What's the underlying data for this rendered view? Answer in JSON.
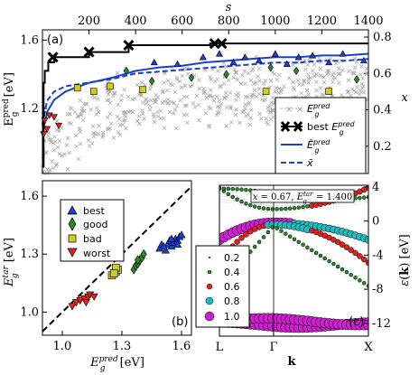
{
  "chart_data": [
    {
      "panel": "(a)",
      "type": "scatter",
      "x_bottom_label": "",
      "x_top_label": "s",
      "x_top_ticks": [
        "200",
        "400",
        "600",
        "800",
        "1000",
        "1200",
        "1400"
      ],
      "xlim": [
        0,
        1400
      ],
      "ylabel_left": "E_g^pred [eV]",
      "ylabel_left_ticks": [
        "1.2",
        "1.6"
      ],
      "ylim_left": [
        0.82,
        1.66
      ],
      "ylabel_right": "x",
      "yticks_right": [
        "0.2",
        "0.4",
        "0.6",
        "0.8"
      ],
      "ylim_right": [
        0.05,
        0.84
      ],
      "legend": {
        "position": "center-right",
        "entries": [
          "E_g^pred",
          "best E_g^pred",
          "Ē_g^pred",
          "x̄"
        ]
      },
      "best_step": {
        "s": [
          0,
          5,
          10,
          25,
          50,
          200,
          370,
          720,
          760,
          1400
        ],
        "E": [
          0.86,
          1.35,
          1.42,
          1.47,
          1.5,
          1.53,
          1.57,
          1.58,
          1.58,
          1.58
        ]
      },
      "mean_E": {
        "s": [
          0,
          20,
          50,
          100,
          200,
          300,
          400,
          500,
          600,
          700,
          800,
          900,
          1000,
          1100,
          1200,
          1300,
          1400
        ],
        "E": [
          1.05,
          1.18,
          1.25,
          1.3,
          1.35,
          1.38,
          1.42,
          1.44,
          1.45,
          1.47,
          1.48,
          1.49,
          1.5,
          1.5,
          1.51,
          1.51,
          1.52
        ]
      },
      "mean_x": {
        "s": [
          0,
          20,
          50,
          100,
          200,
          300,
          400,
          500,
          600,
          700,
          800,
          900,
          1000,
          1100,
          1200,
          1300,
          1400
        ],
        "x": [
          0.32,
          0.45,
          0.5,
          0.53,
          0.55,
          0.57,
          0.6,
          0.61,
          0.62,
          0.63,
          0.64,
          0.65,
          0.66,
          0.66,
          0.67,
          0.67,
          0.68
        ]
      },
      "best_markers": {
        "s": [
          45,
          200,
          370,
          740,
          770
        ],
        "E": [
          1.5,
          1.53,
          1.57,
          1.58,
          1.58
        ]
      },
      "classified_points": {
        "best": {
          "s": [
            480,
            580,
            690,
            760,
            820,
            870,
            930,
            1000,
            1050,
            1100,
            1160,
            1230,
            1290,
            1380
          ],
          "E": [
            1.47,
            1.46,
            1.5,
            1.52,
            1.47,
            1.5,
            1.48,
            1.52,
            1.46,
            1.5,
            1.51,
            1.47,
            1.52,
            1.48
          ]
        },
        "good": {
          "s": [
            360,
            470,
            640,
            790,
            980,
            1090,
            1350
          ],
          "E": [
            1.42,
            1.36,
            1.38,
            1.4,
            1.44,
            1.42,
            1.37
          ]
        },
        "bad": {
          "s": [
            150,
            220,
            290,
            430,
            960,
            1230
          ],
          "E": [
            1.32,
            1.3,
            1.33,
            1.31,
            1.3,
            1.3
          ]
        },
        "worst": {
          "s": [
            5,
            10,
            20,
            30,
            50,
            70
          ],
          "E": [
            1.05,
            1.13,
            1.08,
            1.16,
            1.15,
            1.1
          ]
        }
      }
    },
    {
      "panel": "(b)",
      "type": "scatter",
      "xlabel": "E_g^pred [eV]",
      "ylabel": "E_g^tar [eV]",
      "xticks": [
        "1.0",
        "1.3",
        "1.6"
      ],
      "yticks": [
        "1.0",
        "1.3",
        "1.6"
      ],
      "xlim": [
        0.9,
        1.65
      ],
      "ylim": [
        0.88,
        1.68
      ],
      "diagonal": true,
      "legend": {
        "position": "top-left",
        "entries": [
          "best",
          "good",
          "bad",
          "worst"
        ]
      },
      "series": [
        {
          "name": "best",
          "color": "#1f3fcc",
          "x": [
            1.49,
            1.5,
            1.52,
            1.53,
            1.54,
            1.55,
            1.56,
            1.57,
            1.58,
            1.59,
            1.6,
            1.51,
            1.55,
            1.58
          ],
          "y": [
            1.33,
            1.35,
            1.32,
            1.35,
            1.37,
            1.34,
            1.36,
            1.38,
            1.37,
            1.39,
            1.4,
            1.34,
            1.38,
            1.35
          ]
        },
        {
          "name": "good",
          "color": "#2a8a2a",
          "x": [
            1.36,
            1.37,
            1.38,
            1.39,
            1.4,
            1.41,
            1.38
          ],
          "y": [
            1.22,
            1.24,
            1.25,
            1.27,
            1.28,
            1.3,
            1.27
          ]
        },
        {
          "name": "bad",
          "color": "#cccc22",
          "x": [
            1.25,
            1.26,
            1.27,
            1.28,
            1.27,
            1.26
          ],
          "y": [
            1.19,
            1.2,
            1.21,
            1.22,
            1.23,
            1.2
          ]
        },
        {
          "name": "worst",
          "color": "#dd2222",
          "x": [
            1.05,
            1.07,
            1.09,
            1.11,
            1.12,
            1.13,
            1.14,
            1.16
          ],
          "y": [
            1.03,
            1.05,
            1.06,
            1.07,
            1.05,
            1.08,
            1.09,
            1.08
          ]
        }
      ]
    },
    {
      "panel": "(c)",
      "type": "scatter",
      "title": "x = 0.67, E_g^tar = 1.400",
      "xlabel": "k",
      "xticks": [
        "L",
        "Γ",
        "X"
      ],
      "ylabel": "ε(k) [eV]",
      "yticks": [
        "4",
        "0",
        "-4",
        "-8",
        "-12"
      ],
      "ylim": [
        -13.5,
        4.2
      ],
      "legend": {
        "position": "lower-left",
        "entries": [
          "0.2",
          "0.4",
          "0.6",
          "0.8",
          "1.0"
        ]
      }
    }
  ]
}
